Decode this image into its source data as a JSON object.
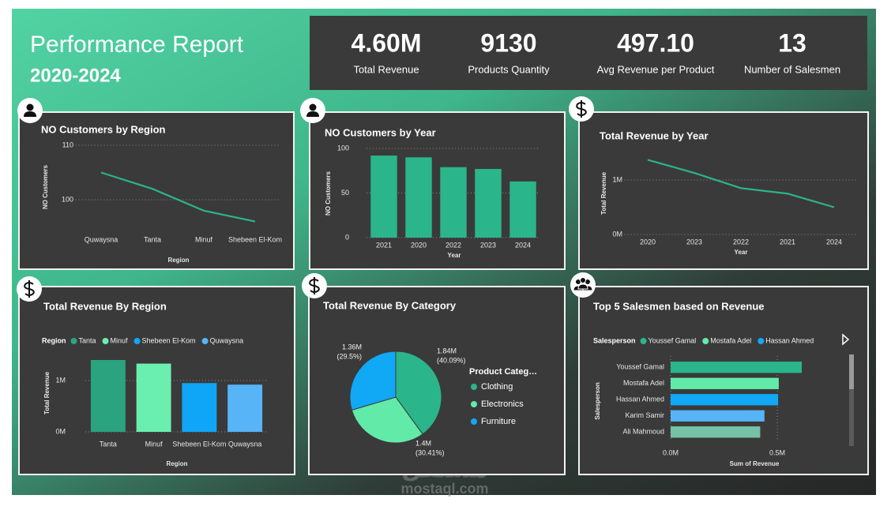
{
  "header": {
    "title": "Performance Report",
    "subtitle": "2020-2024"
  },
  "kpis": [
    {
      "value": "4.60M",
      "label": "Total Revenue"
    },
    {
      "value": "9130",
      "label": "Products Quantity"
    },
    {
      "value": "497.10",
      "label": "Avg Revenue per Product"
    },
    {
      "value": "13",
      "label": "Number of Salesmen"
    }
  ],
  "watermark": {
    "logo": "مستقل",
    "url": "mostaql.com"
  },
  "chart_data": [
    {
      "type": "line",
      "title": "NO Customers by Region",
      "x_label": "Region",
      "y_label": "NO Customers",
      "categories": [
        "Quwaysna",
        "Tanta",
        "Minuf",
        "Shebeen El-Kom"
      ],
      "values": [
        105,
        102,
        98,
        96
      ],
      "color": "#2bb58a",
      "ylim": [
        95,
        110
      ],
      "yticks": [
        100,
        110
      ],
      "grid": true
    },
    {
      "type": "bar",
      "title": "NO Customers by Year",
      "x_label": "Year",
      "y_label": "NO Customers",
      "categories": [
        "2021",
        "2020",
        "2022",
        "2023",
        "2024"
      ],
      "values": [
        92,
        90,
        79,
        77,
        63
      ],
      "color": "#2bb58a",
      "ylim": [
        0,
        100
      ],
      "yticks": [
        0,
        50,
        100
      ],
      "grid": true
    },
    {
      "type": "line",
      "title": "Total Revenue by Year",
      "x_label": "Year",
      "y_label": "Total Revenue",
      "categories": [
        "2020",
        "2023",
        "2022",
        "2021",
        "2024"
      ],
      "values": [
        1370000,
        1130000,
        850000,
        750000,
        500000
      ],
      "color": "#2bb58a",
      "ylim": [
        0,
        1500000
      ],
      "yticks": [
        {
          "value": 0,
          "label": "0M"
        },
        {
          "value": 1000000,
          "label": "1M"
        }
      ],
      "grid": true
    },
    {
      "type": "bar",
      "title": "Total Revenue By Region",
      "x_label": "Region",
      "y_label": "Total Revenue",
      "legend_title": "Region",
      "categories": [
        "Tanta",
        "Minuf",
        "Shebeen El-Kom",
        "Quwaysna"
      ],
      "values": [
        1400000,
        1330000,
        950000,
        920000
      ],
      "colors": [
        "#2ba37f",
        "#6aefb0",
        "#10a6f7",
        "#56b4f7"
      ],
      "ylim": [
        0,
        1500000
      ],
      "yticks": [
        {
          "value": 0,
          "label": "0M"
        },
        {
          "value": 1000000,
          "label": "1M"
        }
      ],
      "grid": true
    },
    {
      "type": "pie",
      "title": "Total Revenue By Category",
      "legend_title": "Product Categ…",
      "categories": [
        "Clothing",
        "Electronics",
        "Furniture"
      ],
      "values": [
        1840000,
        1400000,
        1360000
      ],
      "value_labels": [
        "1.84M",
        "1.4M",
        "1.36M"
      ],
      "percent_labels": [
        "(40.09%)",
        "(30.41%)",
        "(29.5%)"
      ],
      "colors": [
        "#2bb58a",
        "#62eaa9",
        "#11a8f5"
      ]
    },
    {
      "type": "hbar",
      "title": "Top 5 Salesmen based on Revenue",
      "x_label": "Sum of Revenue",
      "y_label": "Salesperson",
      "legend_title": "Salesperson",
      "categories": [
        "Youssef Gamal",
        "Mostafa Adel",
        "Hassan Ahmed",
        "Karim Samir",
        "Ali Mahmoud"
      ],
      "values": [
        615000,
        507000,
        504000,
        440000,
        420000
      ],
      "colors": [
        "#2bb58a",
        "#62eaa9",
        "#11a8f5",
        "#56b4f7",
        "#76c2a6"
      ],
      "xlim": [
        0,
        700000
      ],
      "xticks": [
        {
          "value": 0,
          "label": "0.0M"
        },
        {
          "value": 500000,
          "label": "0.5M"
        }
      ],
      "grid": true
    }
  ]
}
